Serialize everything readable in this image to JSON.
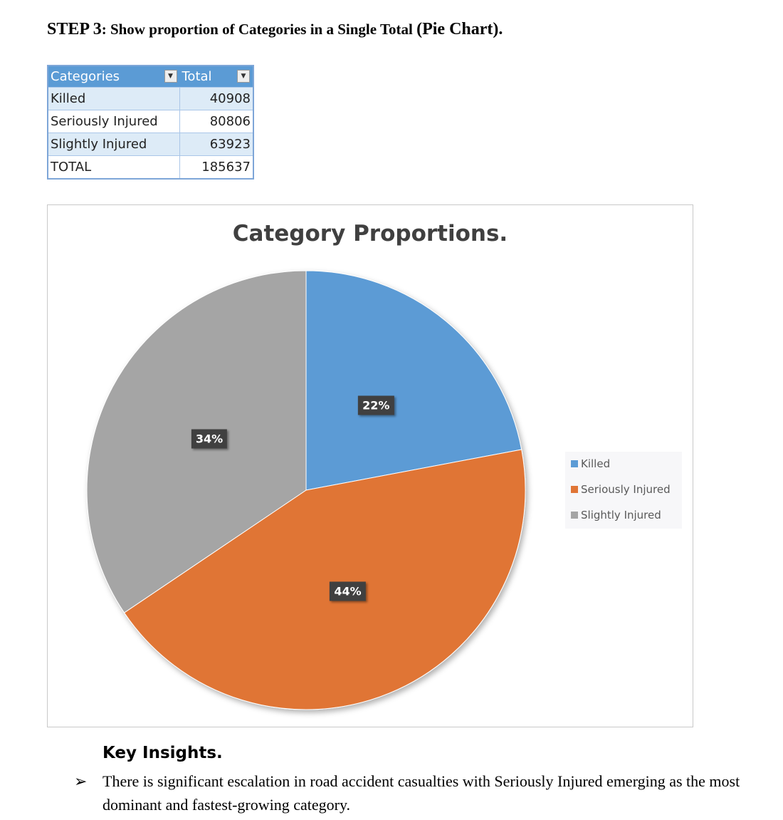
{
  "heading": {
    "step": "STEP 3",
    "text": ": Show proportion of Categories in a Single Total ",
    "paren": "(Pie Chart)."
  },
  "table": {
    "headers": [
      "Categories",
      "Total"
    ],
    "rows": [
      {
        "category": "Killed",
        "total": "40908"
      },
      {
        "category": "Seriously Injured",
        "total": "80806"
      },
      {
        "category": "Slightly Injured",
        "total": "63923"
      },
      {
        "category": "TOTAL",
        "total": "185637"
      }
    ]
  },
  "chart_data": {
    "type": "pie",
    "title": "Category Proportions.",
    "categories": [
      "Killed",
      "Seriously Injured",
      "Slightly Injured"
    ],
    "values": [
      40908,
      80806,
      63923
    ],
    "labels": [
      "22%",
      "44%",
      "34%"
    ],
    "colors": [
      "#5b9bd5",
      "#e07535",
      "#a5a5a5"
    ],
    "legend_position": "right"
  },
  "insights": {
    "title": "Key Insights.",
    "bullet_icon": "arrow-bullet",
    "bullet_glyph": "➢",
    "items": [
      "There is significant escalation in road accident casualties with Seriously Injured emerging as the most dominant and fastest-growing category."
    ]
  }
}
